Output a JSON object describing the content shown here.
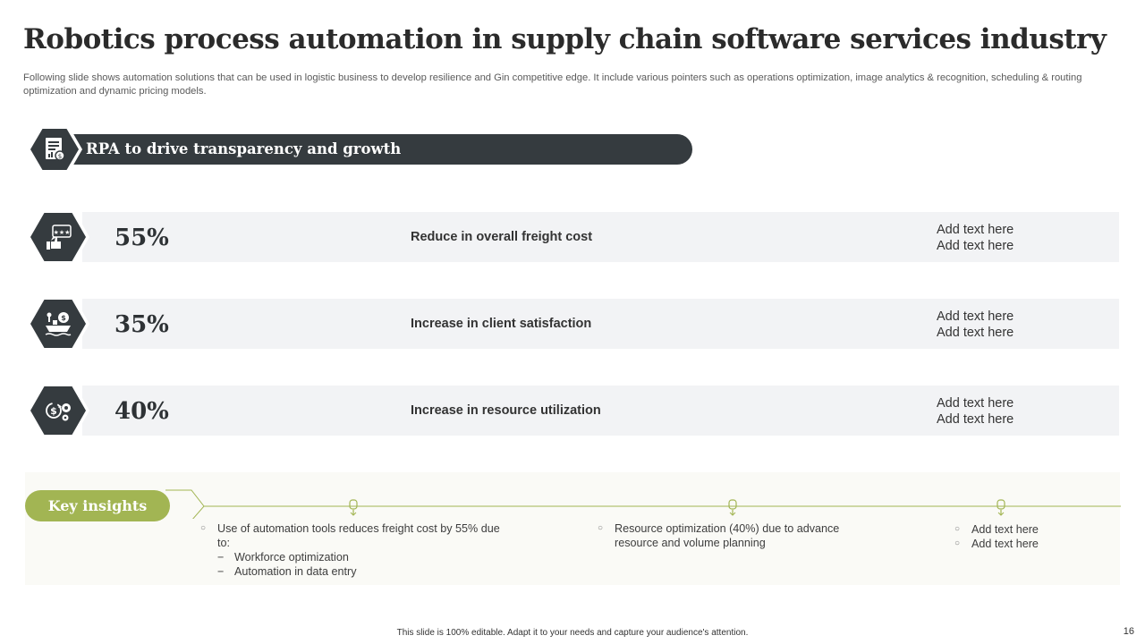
{
  "header": {
    "title": "Robotics process automation in supply chain software services industry",
    "subtitle": "Following slide shows automation solutions that can be used in logistic business to develop resilience and Gin competitive edge. It include various pointers such as operations optimization, image analytics & recognition, scheduling & routing optimization and dynamic pricing models."
  },
  "banner": {
    "label": "RPA to drive transparency and growth",
    "icon": "report-document-icon"
  },
  "stats": [
    {
      "percent": "55%",
      "label": "Reduce in overall freight cost",
      "note1": "Add text here",
      "note2": "Add text here",
      "icon": "thumbs-up-rating-icon"
    },
    {
      "percent": "35%",
      "label": "Increase in client satisfaction",
      "note1": "Add text here",
      "note2": "Add text here",
      "icon": "ship-dollar-icon"
    },
    {
      "percent": "40%",
      "label": "Increase in resource utilization",
      "note1": "Add text here",
      "note2": "Add text here",
      "icon": "dollar-gear-icon"
    }
  ],
  "insights": {
    "label": "Key insights",
    "col1": {
      "bullet": "Use of automation tools reduces freight cost by 55% due to:",
      "subs": [
        "Workforce optimization",
        "Automation in data entry"
      ]
    },
    "col2": {
      "bullet": "Resource optimization (40%) due to advance resource and volume planning"
    },
    "col3": {
      "bullets": [
        "Add text here",
        "Add text here"
      ]
    }
  },
  "colors": {
    "dark": "#353b3f",
    "accent": "#a2b553",
    "row": "#f2f3f5"
  },
  "footer": {
    "note": "This slide is 100% editable. Adapt it to your needs and capture your audience's attention.",
    "page": "16"
  }
}
